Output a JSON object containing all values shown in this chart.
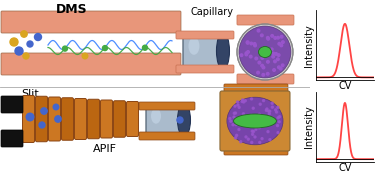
{
  "bg_color": "#ffffff",
  "salmon_color": "#E8967A",
  "dark_salmon": "#C87050",
  "blue_color": "#6699CC",
  "dark_blue": "#334488",
  "orange_color": "#CC7722",
  "dark_orange": "#8B4513",
  "gold_color": "#DAA520",
  "yellow_dot": "#DAA520",
  "blue_dot": "#4466CC",
  "green_dot": "#44AA44",
  "wave_color": "#4488FF",
  "green_wave": "#44AA44",
  "purple_color": "#7744AA",
  "bright_green": "#44BB44",
  "label_dms": "DMS",
  "label_capillary": "Capillary",
  "label_slit": "Slit",
  "label_apif": "APIF",
  "label_intensity": "Intensity",
  "label_cv": "CV",
  "peak1_color": "#FF4444",
  "peak2_color": "#FF4444",
  "figsize": [
    3.78,
    1.74
  ],
  "dpi": 100
}
